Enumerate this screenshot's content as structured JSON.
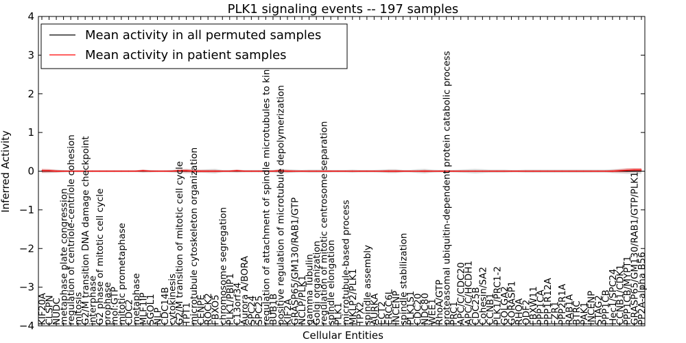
{
  "chart_data": {
    "type": "line",
    "title": "PLK1 signaling events -- 197 samples",
    "xlabel": "Cellular Entities",
    "ylabel": "Inferred Activity",
    "ylim": [
      -4,
      4
    ],
    "yticks": [
      -4,
      -3,
      -2,
      -1,
      0,
      1,
      2,
      3,
      4
    ],
    "grid": false,
    "legend_position": "top-left",
    "categories": [
      "KIF20A",
      "CLSPN",
      "NUDC",
      "metaphase plate congression",
      "regulation of centriole-centriole cohesion",
      "mitosis",
      "G2/M transition DNA damage checkpoint",
      "interphase",
      "G2 phase of mitotic cell cycle",
      "prophase",
      "mol:GTP",
      "mitotic prometaphase",
      "CDC2",
      "metaphase",
      "MLF1IP",
      "SGOL1",
      "NLP",
      "CDC14B",
      "cytokinesis",
      "G2/M transition of mitotic cell cycle",
      "TPT1",
      "microtubule cytoskeleton organization",
      "CENPE",
      "ROCK2",
      "FBXO5",
      "chromosome segregation",
      "PLK1/PBIP1",
      "C13orf34",
      "Aurora A/BORA",
      "SPC24",
      "SPC25",
      "regulation of attachment of spindle microtubules to kinetochore",
      "BUB1B",
      "positive regulation of microtubule depolymerization",
      "KIF2A",
      "GRASP65/GM130/RAB1/GTP",
      "NCLP/PLK1",
      "gamma Tubulin",
      "Golgi organization",
      "regulation of mitotic centrosome separation",
      "spindle elongation",
      "PLK1",
      "microtubule-based process",
      "MKLP2/PLK1",
      "TPX2",
      "spindle assembly",
      "AURKA",
      "ECT2",
      "ERCC6L",
      "INCENP",
      "spindle stabilization",
      "PLK1S1",
      "CDC20",
      "NDC80",
      "WEE1",
      "RhoA/GTP",
      "proteasomal ubiquitin-dependent protein catabolic process",
      "PRC1",
      "APC/C/CDC20",
      "APC/C/HCDH1",
      "CDC25B",
      "Cohesin/SA2",
      "CCNB1",
      "PLK1/PRC1-2",
      "GOLGA2",
      "GORASP1",
      "RHOA",
      "ODF2",
      "FBXW11",
      "PPP1CA",
      "PPP1R12A",
      "FZR1",
      "PPP2R1A",
      "RAB1A",
      "BTRC",
      "PAK1",
      "INCENP",
      "STAG2",
      "PPP1CB",
      "Hec1/SPC24",
      "CCNB1/CDK1",
      "PPP1CB/MYPT1",
      "GRASP65/GM130/RAB1/GTP/PLK1",
      "PP2A-alpha B56"
    ],
    "series": [
      {
        "name": "Mean activity in all permuted samples",
        "color": "#000000",
        "values": [
          0,
          0,
          0,
          0,
          0,
          0,
          0,
          0,
          0,
          0,
          0,
          0,
          0,
          0,
          0,
          0,
          0,
          0,
          0,
          0,
          0,
          0,
          0,
          0,
          0,
          0,
          0,
          0,
          0,
          0,
          0,
          0,
          0,
          0,
          0,
          0,
          0,
          0,
          0,
          0,
          0,
          0,
          0,
          0,
          0,
          0,
          0,
          0,
          0,
          0,
          0,
          0,
          0,
          0,
          0,
          0,
          0,
          0,
          0,
          0,
          0,
          0,
          0,
          0,
          0,
          0,
          0,
          0,
          0,
          0,
          0,
          0,
          0,
          0,
          0,
          0,
          0,
          0,
          0,
          0,
          0,
          0,
          0,
          0
        ]
      },
      {
        "name": "Mean activity in patient samples",
        "color": "#ff0000",
        "values": [
          0.01,
          0.01,
          0.0,
          0.0,
          0.0,
          0.0,
          0.0,
          0.0,
          0.0,
          0.0,
          0.0,
          0.0,
          0.0,
          0.0,
          0.01,
          0.0,
          0.0,
          0.0,
          0.0,
          0.01,
          0.01,
          0.0,
          0.0,
          0.0,
          0.0,
          0.0,
          0.0,
          0.01,
          0.0,
          0.0,
          0.0,
          0.0,
          0.0,
          0.01,
          0.0,
          0.0,
          0.0,
          0.0,
          0.0,
          0.0,
          0.0,
          0.0,
          0.0,
          0.0,
          0.0,
          0.0,
          0.0,
          0.0,
          0.0,
          0.0,
          0.0,
          0.0,
          0.0,
          0.0,
          0.0,
          0.0,
          0.0,
          0.0,
          0.0,
          0.0,
          0.0,
          0.0,
          0.0,
          0.0,
          0.0,
          0.0,
          0.0,
          0.0,
          0.0,
          0.0,
          0.0,
          0.0,
          0.0,
          0.0,
          0.0,
          0.0,
          0.0,
          0.0,
          0.0,
          0.0,
          0.01,
          0.02,
          0.03,
          0.03
        ]
      }
    ],
    "bands": {
      "permuted_spread": [
        0.05,
        0.05,
        0.04,
        0.03,
        0.02,
        0.02,
        0.02,
        0.02,
        0.02,
        0.02,
        0.02,
        0.02,
        0.02,
        0.02,
        0.04,
        0.03,
        0.02,
        0.02,
        0.03,
        0.05,
        0.06,
        0.05,
        0.04,
        0.05,
        0.06,
        0.03,
        0.03,
        0.04,
        0.03,
        0.03,
        0.03,
        0.03,
        0.03,
        0.06,
        0.05,
        0.04,
        0.03,
        0.04,
        0.04,
        0.04,
        0.03,
        0.03,
        0.03,
        0.04,
        0.03,
        0.03,
        0.03,
        0.04,
        0.05,
        0.05,
        0.03,
        0.03,
        0.05,
        0.06,
        0.04,
        0.03,
        0.03,
        0.03,
        0.04,
        0.05,
        0.06,
        0.05,
        0.04,
        0.04,
        0.04,
        0.03,
        0.03,
        0.04,
        0.04,
        0.04,
        0.04,
        0.04,
        0.04,
        0.04,
        0.04,
        0.04,
        0.04,
        0.04,
        0.04,
        0.05,
        0.06,
        0.07,
        0.07,
        0.07
      ],
      "patient_spread": [
        0.05,
        0.04,
        0.03,
        0.02,
        0.02,
        0.02,
        0.02,
        0.02,
        0.02,
        0.02,
        0.02,
        0.02,
        0.02,
        0.02,
        0.03,
        0.02,
        0.02,
        0.02,
        0.02,
        0.03,
        0.04,
        0.03,
        0.03,
        0.03,
        0.03,
        0.02,
        0.02,
        0.03,
        0.02,
        0.02,
        0.02,
        0.02,
        0.02,
        0.03,
        0.03,
        0.02,
        0.02,
        0.02,
        0.02,
        0.02,
        0.02,
        0.02,
        0.02,
        0.02,
        0.02,
        0.02,
        0.02,
        0.02,
        0.03,
        0.03,
        0.02,
        0.02,
        0.02,
        0.03,
        0.02,
        0.02,
        0.02,
        0.02,
        0.02,
        0.02,
        0.02,
        0.02,
        0.02,
        0.02,
        0.02,
        0.02,
        0.02,
        0.02,
        0.02,
        0.02,
        0.02,
        0.02,
        0.02,
        0.02,
        0.02,
        0.02,
        0.02,
        0.02,
        0.02,
        0.03,
        0.04,
        0.05,
        0.05,
        0.05
      ]
    }
  }
}
